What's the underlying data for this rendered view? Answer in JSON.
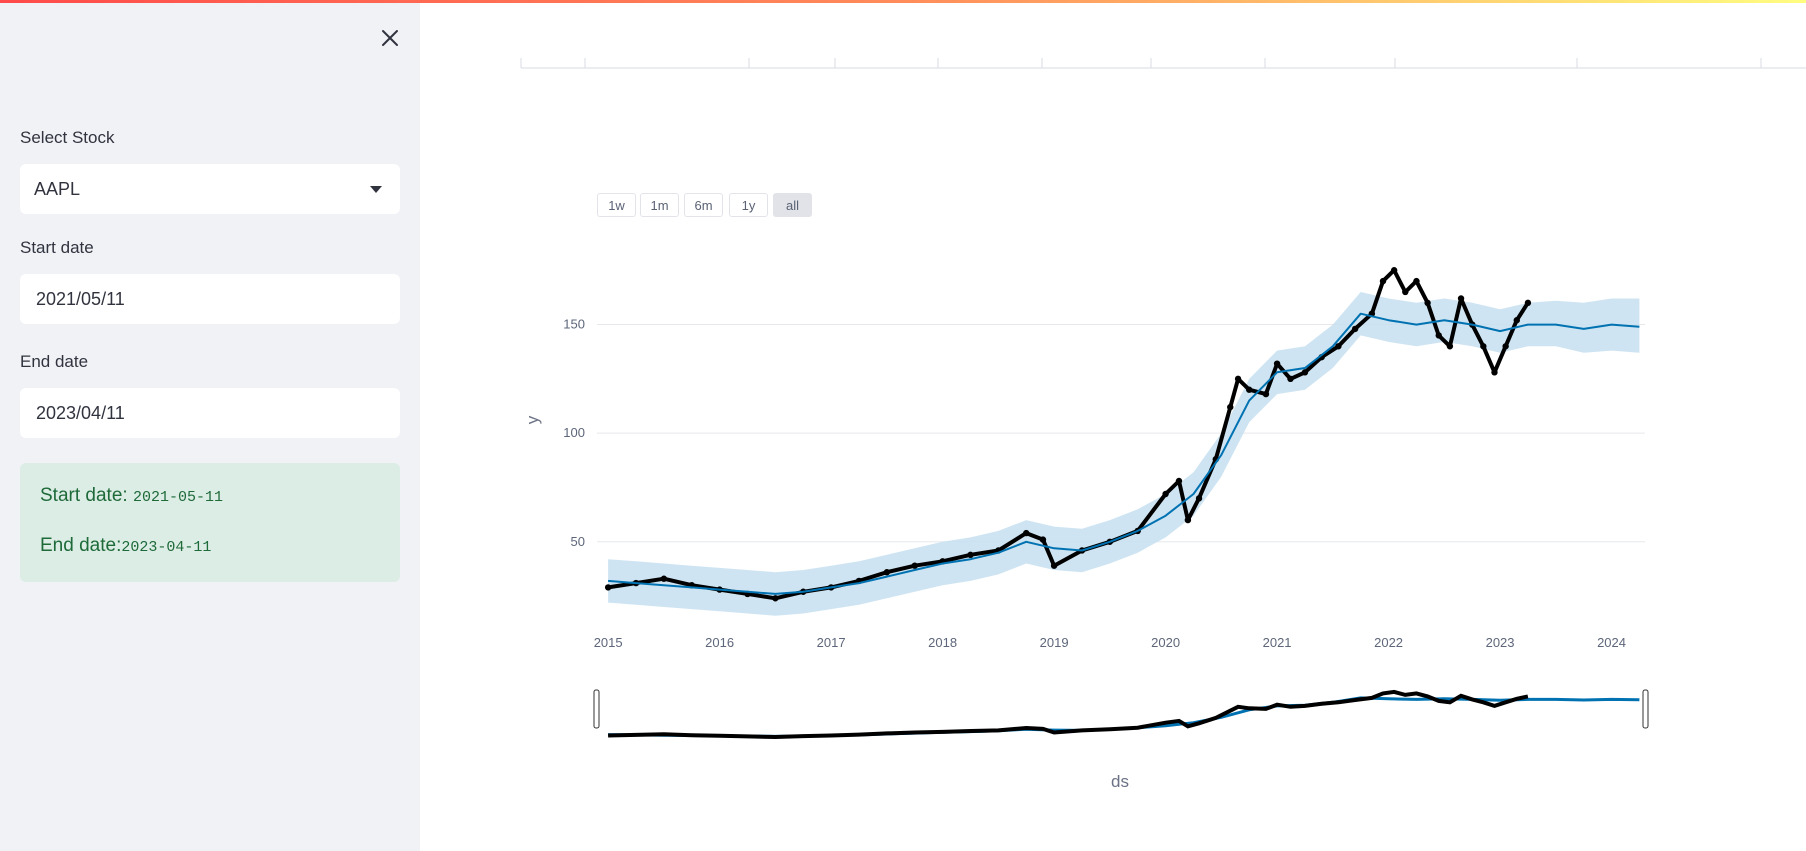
{
  "sidebar": {
    "stock_label": "Select Stock",
    "stock_value": "AAPL",
    "start_label": "Start date",
    "start_value": "2021/05/11",
    "end_label": "End date",
    "end_value": "2023/04/11",
    "info": {
      "start_prefix": "Start date: ",
      "start_code": "2021-05-11",
      "end_prefix": "End date:",
      "end_code": "2023-04-11"
    }
  },
  "colors": {
    "accent_blue": "#0072b2",
    "band_blue": "#c6dff0",
    "actual_points": "#000000",
    "info_bg": "#dcede5",
    "info_text": "#1e6a39"
  },
  "chart": {
    "range_buttons": [
      "1w",
      "1m",
      "6m",
      "1y",
      "all"
    ],
    "active_range": "all"
  },
  "chart_data": {
    "type": "line",
    "xlabel": "ds",
    "ylabel": "y",
    "x_ticks": [
      "2015",
      "2016",
      "2017",
      "2018",
      "2019",
      "2020",
      "2021",
      "2022",
      "2023",
      "2024"
    ],
    "y_ticks": [
      50,
      100,
      150
    ],
    "xlim": [
      2014.9,
      2024.3
    ],
    "ylim": [
      14,
      188
    ],
    "grid": "horizontal",
    "series": [
      {
        "role": "actual",
        "style": "markers",
        "color": "#000000",
        "x": [
          2015.0,
          2015.25,
          2015.5,
          2015.75,
          2016.0,
          2016.25,
          2016.5,
          2016.75,
          2017.0,
          2017.25,
          2017.5,
          2017.75,
          2018.0,
          2018.25,
          2018.5,
          2018.75,
          2018.9,
          2019.0,
          2019.25,
          2019.5,
          2019.75,
          2020.0,
          2020.12,
          2020.2,
          2020.3,
          2020.45,
          2020.58,
          2020.65,
          2020.75,
          2020.9,
          2021.0,
          2021.12,
          2021.25,
          2021.4,
          2021.55,
          2021.7,
          2021.85,
          2021.95,
          2022.05,
          2022.15,
          2022.25,
          2022.35,
          2022.45,
          2022.55,
          2022.65,
          2022.75,
          2022.85,
          2022.95,
          2023.05,
          2023.15,
          2023.25
        ],
        "y": [
          29,
          31,
          33,
          30,
          28,
          26,
          24,
          27,
          29,
          32,
          36,
          39,
          41,
          44,
          46,
          54,
          51,
          39,
          46,
          50,
          55,
          72,
          78,
          60,
          70,
          88,
          112,
          125,
          120,
          118,
          132,
          125,
          128,
          135,
          140,
          148,
          155,
          170,
          175,
          165,
          170,
          160,
          145,
          140,
          162,
          150,
          140,
          128,
          140,
          152,
          160
        ]
      },
      {
        "role": "forecast",
        "style": "line",
        "color": "#0072b2",
        "x": [
          2015.0,
          2015.25,
          2015.5,
          2015.75,
          2016.0,
          2016.25,
          2016.5,
          2016.75,
          2017.0,
          2017.25,
          2017.5,
          2017.75,
          2018.0,
          2018.25,
          2018.5,
          2018.75,
          2019.0,
          2019.25,
          2019.5,
          2019.75,
          2020.0,
          2020.25,
          2020.5,
          2020.75,
          2021.0,
          2021.25,
          2021.5,
          2021.75,
          2022.0,
          2022.25,
          2022.5,
          2022.75,
          2023.0,
          2023.25,
          2023.5,
          2023.75,
          2024.0,
          2024.25
        ],
        "y": [
          32,
          31,
          30,
          29,
          28,
          27,
          26,
          27,
          29,
          31,
          34,
          37,
          40,
          42,
          45,
          50,
          47,
          46,
          50,
          55,
          62,
          72,
          90,
          115,
          128,
          130,
          140,
          155,
          152,
          150,
          152,
          150,
          147,
          150,
          150,
          148,
          150,
          149
        ]
      }
    ],
    "uncertainty_band": {
      "color": "#c6dff0",
      "x": [
        2015.0,
        2015.25,
        2015.5,
        2015.75,
        2016.0,
        2016.25,
        2016.5,
        2016.75,
        2017.0,
        2017.25,
        2017.5,
        2017.75,
        2018.0,
        2018.25,
        2018.5,
        2018.75,
        2019.0,
        2019.25,
        2019.5,
        2019.75,
        2020.0,
        2020.25,
        2020.5,
        2020.75,
        2021.0,
        2021.25,
        2021.5,
        2021.75,
        2022.0,
        2022.25,
        2022.5,
        2022.75,
        2023.0,
        2023.25,
        2023.5,
        2023.75,
        2024.0,
        2024.25
      ],
      "lower": [
        22,
        21,
        20,
        19,
        18,
        17,
        16,
        17,
        19,
        21,
        24,
        27,
        30,
        32,
        35,
        40,
        37,
        36,
        40,
        45,
        52,
        62,
        80,
        105,
        118,
        120,
        130,
        145,
        142,
        140,
        142,
        140,
        137,
        140,
        140,
        137,
        138,
        137
      ],
      "upper": [
        42,
        41,
        40,
        39,
        38,
        37,
        36,
        37,
        39,
        41,
        44,
        47,
        50,
        52,
        55,
        60,
        57,
        56,
        60,
        65,
        72,
        82,
        100,
        125,
        138,
        140,
        150,
        165,
        162,
        160,
        162,
        160,
        157,
        160,
        161,
        160,
        162,
        162
      ]
    },
    "range_slider": true
  }
}
